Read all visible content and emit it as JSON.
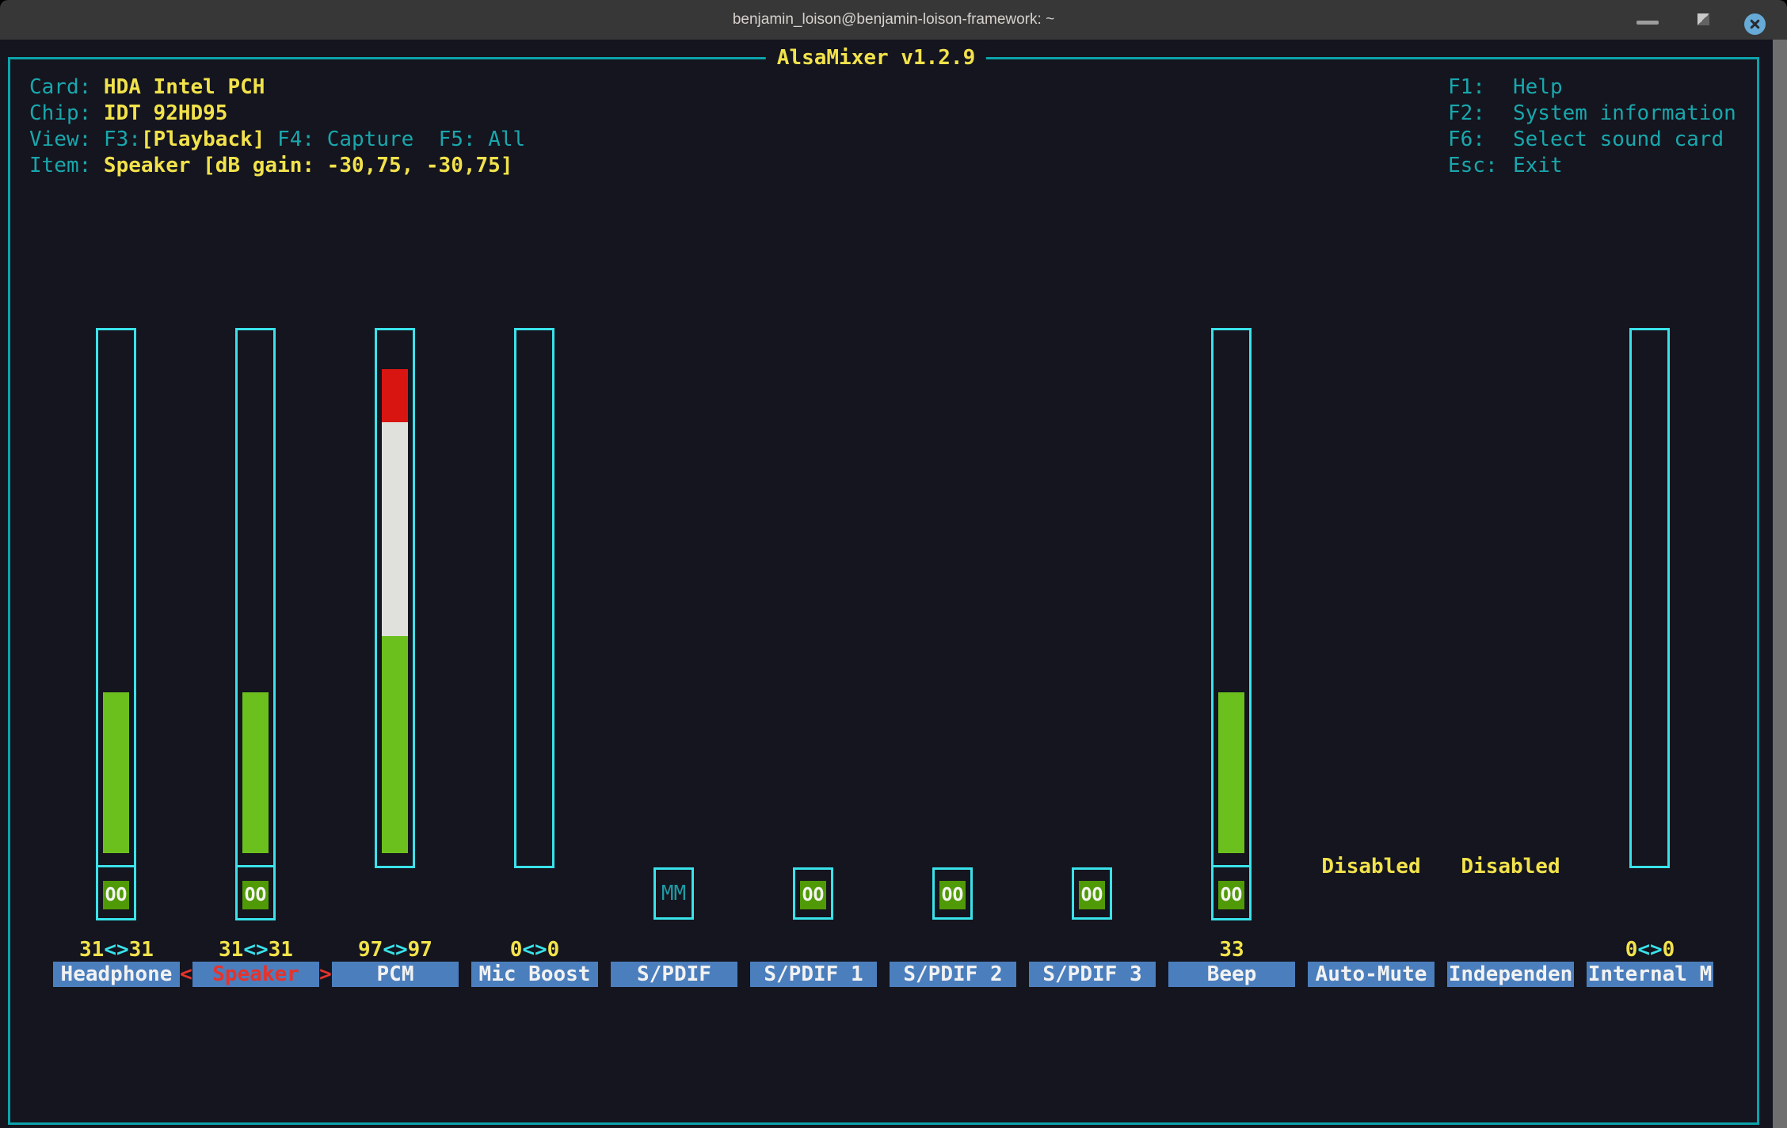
{
  "window": {
    "title": "benjamin_loison@benjamin-loison-framework: ~"
  },
  "mixer": {
    "title": "AlsaMixer v1.2.9",
    "info": {
      "card_label": "Card: ",
      "card": "HDA Intel PCH",
      "chip_label": "Chip: ",
      "chip": "IDT 92HD95",
      "view_label": "View: F3:",
      "view_active": "[Playback]",
      "view_rest": " F4: Capture  F5: All",
      "item_label": "Item: ",
      "item": "Speaker [dB gain: -30,75, -30,75]"
    },
    "help": [
      {
        "key": "F1:",
        "desc": "Help"
      },
      {
        "key": "F2:",
        "desc": "System information"
      },
      {
        "key": "F6:",
        "desc": "Select sound card"
      },
      {
        "key": "Esc:",
        "desc": "Exit"
      }
    ],
    "channels": [
      {
        "name": "Headphone",
        "selected": false,
        "bar": true,
        "mute": "OO",
        "value": "31<>31",
        "fill_segments": [
          {
            "color": "green",
            "from": 874,
            "to": 1077
          }
        ]
      },
      {
        "name": "Speaker",
        "selected": true,
        "bar": true,
        "mute": "OO",
        "value": "31<>31",
        "fill_segments": [
          {
            "color": "green",
            "from": 874,
            "to": 1077
          }
        ]
      },
      {
        "name": "PCM",
        "selected": false,
        "bar": true,
        "mute": null,
        "value": "97<>97",
        "fill_segments": [
          {
            "color": "red",
            "from": 466,
            "to": 533
          },
          {
            "color": "white",
            "from": 533,
            "to": 803
          },
          {
            "color": "green",
            "from": 803,
            "to": 1077
          }
        ]
      },
      {
        "name": "Mic Boost",
        "selected": false,
        "bar": true,
        "mute": null,
        "value": "0<>0",
        "fill_segments": []
      },
      {
        "name": "S/PDIF",
        "selected": false,
        "bar": false,
        "mute": "MM",
        "value": null,
        "fill_segments": []
      },
      {
        "name": "S/PDIF 1",
        "selected": false,
        "bar": false,
        "mute": "OO",
        "value": null,
        "fill_segments": []
      },
      {
        "name": "S/PDIF 2",
        "selected": false,
        "bar": false,
        "mute": "OO",
        "value": null,
        "fill_segments": []
      },
      {
        "name": "S/PDIF 3",
        "selected": false,
        "bar": false,
        "mute": "OO",
        "value": null,
        "fill_segments": []
      },
      {
        "name": "Beep",
        "selected": false,
        "bar": true,
        "mute": "OO",
        "value": "33",
        "fill_segments": [
          {
            "color": "green",
            "from": 874,
            "to": 1077
          }
        ]
      },
      {
        "name": "Auto-Mute",
        "selected": false,
        "bar": false,
        "mute": null,
        "value": null,
        "enum_value": "Disabled",
        "fill_segments": []
      },
      {
        "name": "Independen",
        "selected": false,
        "bar": false,
        "mute": null,
        "value": null,
        "enum_value": "Disabled",
        "fill_segments": []
      },
      {
        "name": "Internal M",
        "selected": false,
        "bar": true,
        "mute": null,
        "value": "0<>0",
        "fill_segments": []
      }
    ],
    "colors": {
      "background": "#14151e",
      "frame_teal": "#0ba3ab",
      "text_teal": "#19a7ad",
      "bar_outline_cyan": "#3ae2ea",
      "yellow": "#f2e24b",
      "selected_red": "#e5332d",
      "label_bg_blue": "#4b7ebd",
      "label_fg": "#f2f2f2",
      "fill_green": "#6cc01e",
      "fill_white": "#e0e1dd",
      "fill_red": "#d91511",
      "unmuted_green_bg": "#509a08",
      "titlebar_bg": "#373737",
      "scrollbar_gray": "#6f6f6f",
      "close_button_blue": "#67aad7"
    }
  }
}
